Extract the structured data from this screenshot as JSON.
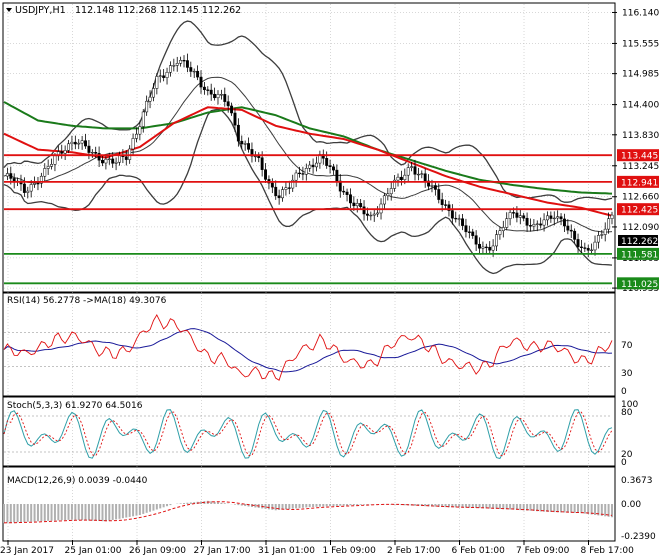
{
  "header": {
    "symbol": "USDJPY,H1",
    "ohlc": "112.148 112.268 112.145 112.262"
  },
  "chart_data": {
    "type": "line",
    "title": "USDJPY,H1",
    "price_axis": {
      "ticks": [
        116.14,
        115.555,
        114.985,
        114.4,
        113.83,
        113.245,
        112.66,
        112.09,
        111.505,
        110.935
      ],
      "range": [
        110.88,
        116.3
      ]
    },
    "x_labels": [
      "23 Jan 2017",
      "25 Jan 01:00",
      "26 Jan 09:00",
      "27 Jan 17:00",
      "31 Jan 01:00",
      "1 Feb 09:00",
      "2 Feb 17:00",
      "6 Feb 01:00",
      "7 Feb 09:00",
      "8 Feb 17:00"
    ],
    "current_price": "112.262",
    "levels": [
      {
        "label": "113.445",
        "value": 113.445,
        "color": "#e01010"
      },
      {
        "label": "112.941",
        "value": 112.941,
        "color": "#e01010"
      },
      {
        "label": "112.425",
        "value": 112.425,
        "color": "#e01010"
      },
      {
        "label": "111.581",
        "value": 111.581,
        "color": "#1a8a1a"
      },
      {
        "label": "111.025",
        "value": 111.025,
        "color": "#1a8a1a"
      }
    ],
    "close_path": [
      [
        0,
        113.05
      ],
      [
        3,
        112.95
      ],
      [
        6,
        112.8
      ],
      [
        9,
        112.92
      ],
      [
        12,
        113.1
      ],
      [
        15,
        113.4
      ],
      [
        18,
        113.62
      ],
      [
        21,
        113.7
      ],
      [
        24,
        113.58
      ],
      [
        27,
        113.45
      ],
      [
        30,
        113.35
      ],
      [
        33,
        113.3
      ],
      [
        36,
        113.42
      ],
      [
        39,
        113.9
      ],
      [
        42,
        114.4
      ],
      [
        45,
        114.85
      ],
      [
        48,
        115.05
      ],
      [
        51,
        115.25
      ],
      [
        54,
        115.1
      ],
      [
        57,
        114.9
      ],
      [
        60,
        114.65
      ],
      [
        63,
        114.55
      ],
      [
        66,
        114.4
      ],
      [
        69,
        113.8
      ],
      [
        72,
        113.55
      ],
      [
        75,
        113.3
      ],
      [
        78,
        112.9
      ],
      [
        81,
        112.7
      ],
      [
        84,
        112.85
      ],
      [
        87,
        113.1
      ],
      [
        90,
        113.25
      ],
      [
        93,
        113.4
      ],
      [
        96,
        113.2
      ],
      [
        99,
        112.85
      ],
      [
        102,
        112.6
      ],
      [
        105,
        112.4
      ],
      [
        108,
        112.25
      ],
      [
        111,
        112.55
      ],
      [
        114,
        112.85
      ],
      [
        117,
        113.0
      ],
      [
        120,
        113.25
      ],
      [
        123,
        113.05
      ],
      [
        126,
        112.8
      ],
      [
        129,
        112.55
      ],
      [
        132,
        112.35
      ],
      [
        135,
        112.1
      ],
      [
        138,
        111.85
      ],
      [
        141,
        111.7
      ],
      [
        144,
        111.75
      ],
      [
        147,
        112.1
      ],
      [
        150,
        112.4
      ],
      [
        153,
        112.25
      ],
      [
        156,
        112.05
      ],
      [
        159,
        112.2
      ],
      [
        162,
        112.35
      ],
      [
        165,
        112.15
      ],
      [
        168,
        111.8
      ],
      [
        171,
        111.65
      ],
      [
        174,
        111.8
      ],
      [
        177,
        112.05
      ],
      [
        179,
        112.26
      ]
    ],
    "ma_red": [
      [
        0,
        113.85
      ],
      [
        10,
        113.55
      ],
      [
        20,
        113.5
      ],
      [
        30,
        113.4
      ],
      [
        40,
        113.6
      ],
      [
        50,
        114.05
      ],
      [
        60,
        114.35
      ],
      [
        70,
        114.3
      ],
      [
        80,
        114.0
      ],
      [
        90,
        113.85
      ],
      [
        100,
        113.75
      ],
      [
        110,
        113.55
      ],
      [
        120,
        113.3
      ],
      [
        130,
        113.05
      ],
      [
        140,
        112.85
      ],
      [
        150,
        112.7
      ],
      [
        160,
        112.55
      ],
      [
        170,
        112.45
      ],
      [
        179,
        112.3
      ]
    ],
    "ma_green": [
      [
        0,
        114.45
      ],
      [
        10,
        114.1
      ],
      [
        20,
        114.0
      ],
      [
        30,
        113.95
      ],
      [
        40,
        113.95
      ],
      [
        50,
        114.05
      ],
      [
        60,
        114.25
      ],
      [
        70,
        114.35
      ],
      [
        80,
        114.2
      ],
      [
        90,
        113.95
      ],
      [
        100,
        113.8
      ],
      [
        110,
        113.55
      ],
      [
        120,
        113.35
      ],
      [
        130,
        113.15
      ],
      [
        140,
        112.98
      ],
      [
        150,
        112.88
      ],
      [
        160,
        112.8
      ],
      [
        170,
        112.74
      ],
      [
        179,
        112.72
      ]
    ],
    "rsi": {
      "label": "RSI(14) 56.2778  ->MA(18) 49.3076",
      "levels": [
        70,
        30
      ],
      "ticks": [
        "70",
        "30",
        "0"
      ]
    },
    "stoch": {
      "label": "Stoch(5,3,3) 61.9270 64.5016",
      "ticks": [
        "100",
        "80",
        "20",
        "0"
      ]
    },
    "macd": {
      "label": "MACD(12,26,9) 0.0039 -0.0440",
      "ticks": [
        "0.3673",
        "0.00",
        "-0.2390"
      ]
    }
  },
  "colors": {
    "grid": "#b0b0b0",
    "price": "#000000",
    "bands": "#3d3d3d",
    "ma_red": "#e01010",
    "ma_green": "#1a7a1a",
    "rsi_main": "#e01010",
    "rsi_ma": "#1a1a99",
    "stoch_main": "#2f9fa8",
    "stoch_signal": "#e01010",
    "macd_hist": "#b0b0b0",
    "macd_signal": "#e01010"
  }
}
